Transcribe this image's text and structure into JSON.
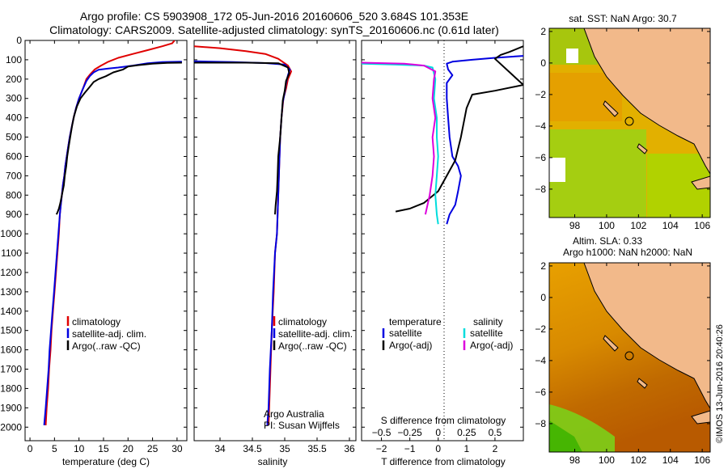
{
  "header": {
    "title_line1": "Argo profile: CS 5903908_172 05-Jun-2016 20160606_520 3.684S 101.353E",
    "title_line2": "Climatology: CARS2009. Satellite-adjusted climatology: synTS_20160606.nc (0.61d later)"
  },
  "depth_axis": {
    "ticks": [
      0,
      100,
      200,
      300,
      400,
      500,
      600,
      700,
      800,
      900,
      1000,
      1100,
      1200,
      1300,
      1400,
      1500,
      1600,
      1700,
      1800,
      1900,
      2000
    ],
    "range": [
      0,
      2070
    ]
  },
  "chart_data": [
    {
      "id": "temperature",
      "type": "line",
      "xlabel": "temperature (deg C)",
      "xlim": [
        -1,
        32
      ],
      "xticks": [
        0,
        5,
        10,
        15,
        20,
        25,
        30
      ],
      "ylim": [
        0,
        2070
      ],
      "y_reversed": true,
      "legend": [
        "climatology",
        "satellite-adj. clim.",
        "Argo(..raw -QC)"
      ],
      "series": [
        {
          "name": "climatology",
          "color": "#e00000",
          "points": [
            [
              29.5,
              0
            ],
            [
              29,
              15
            ],
            [
              27,
              30
            ],
            [
              24,
              50
            ],
            [
              21,
              70
            ],
            [
              18,
              90
            ],
            [
              16,
              110
            ],
            [
              14.5,
              130
            ],
            [
              13.2,
              150
            ],
            [
              12.3,
              175
            ],
            [
              11.5,
              200
            ],
            [
              10.8,
              250
            ],
            [
              10,
              300
            ],
            [
              9.4,
              350
            ],
            [
              8.9,
              400
            ],
            [
              8.5,
              450
            ],
            [
              8.1,
              500
            ],
            [
              7.8,
              550
            ],
            [
              7.5,
              600
            ],
            [
              7.2,
              650
            ],
            [
              7,
              700
            ],
            [
              6.7,
              750
            ],
            [
              6.5,
              800
            ],
            [
              6.3,
              850
            ],
            [
              6.1,
              900
            ],
            [
              5.9,
              1000
            ],
            [
              5.6,
              1100
            ],
            [
              5.3,
              1200
            ],
            [
              5,
              1300
            ],
            [
              4.7,
              1400
            ],
            [
              4.4,
              1500
            ],
            [
              4.2,
              1600
            ],
            [
              3.9,
              1700
            ],
            [
              3.7,
              1800
            ],
            [
              3.4,
              1900
            ],
            [
              3.2,
              1990
            ]
          ]
        },
        {
          "name": "satellite-adj. clim.",
          "color": "#0000e0",
          "points": [
            [
              31,
              110
            ],
            [
              27,
              112
            ],
            [
              24,
              118
            ],
            [
              21,
              130
            ],
            [
              18,
              140
            ],
            [
              16,
              145
            ],
            [
              14,
              152
            ],
            [
              13,
              165
            ],
            [
              12.2,
              185
            ],
            [
              11.5,
              210
            ],
            [
              10.8,
              250
            ],
            [
              10,
              300
            ],
            [
              9.4,
              350
            ],
            [
              8.9,
              400
            ],
            [
              8.5,
              450
            ],
            [
              8.1,
              500
            ],
            [
              7.8,
              550
            ],
            [
              7.5,
              600
            ],
            [
              7.2,
              650
            ],
            [
              7,
              700
            ],
            [
              6.7,
              750
            ],
            [
              6.5,
              800
            ],
            [
              6.3,
              850
            ],
            [
              6.1,
              900
            ],
            [
              5.8,
              1000
            ],
            [
              5.5,
              1100
            ],
            [
              5.2,
              1200
            ],
            [
              4.9,
              1300
            ],
            [
              4.6,
              1400
            ],
            [
              4.3,
              1500
            ],
            [
              4,
              1600
            ],
            [
              3.8,
              1700
            ],
            [
              3.5,
              1800
            ],
            [
              3.2,
              1900
            ],
            [
              2.9,
              1990
            ]
          ]
        },
        {
          "name": "Argo(..raw -QC)",
          "color": "#000000",
          "points": [
            [
              31,
              115
            ],
            [
              28,
              116
            ],
            [
              25,
              120
            ],
            [
              22,
              128
            ],
            [
              20,
              135
            ],
            [
              19,
              150
            ],
            [
              17,
              165
            ],
            [
              15.5,
              185
            ],
            [
              14,
              200
            ],
            [
              13,
              215
            ],
            [
              12.2,
              240
            ],
            [
              11.2,
              270
            ],
            [
              10.3,
              300
            ],
            [
              9.6,
              340
            ],
            [
              9,
              390
            ],
            [
              8.6,
              440
            ],
            [
              8.2,
              500
            ],
            [
              7.9,
              550
            ],
            [
              7.6,
              600
            ],
            [
              7.4,
              650
            ],
            [
              7.1,
              700
            ],
            [
              6.9,
              750
            ],
            [
              6.5,
              800
            ],
            [
              6.2,
              840
            ],
            [
              5.9,
              870
            ],
            [
              5.6,
              890
            ],
            [
              5.4,
              900
            ]
          ]
        }
      ]
    },
    {
      "id": "salinity",
      "type": "line",
      "xlabel": "salinity",
      "xlim": [
        33.6,
        36.1
      ],
      "xticks": [
        34,
        34.5,
        35,
        35.5,
        36
      ],
      "xtick_labels": [
        "34",
        "34.5",
        "35",
        "35.5",
        "36"
      ],
      "ylim": [
        0,
        2070
      ],
      "y_reversed": true,
      "legend": [
        "climatology",
        "satellite-adj. clim.",
        "Argo(..raw -QC)"
      ],
      "annotations": [
        "Argo Australia",
        "PI: Susan Wijffels"
      ],
      "series": [
        {
          "name": "climatology",
          "color": "#e00000",
          "points": [
            [
              33.6,
              30
            ],
            [
              34,
              40
            ],
            [
              34.4,
              55
            ],
            [
              34.7,
              70
            ],
            [
              34.9,
              95
            ],
            [
              35.05,
              130
            ],
            [
              35.1,
              160
            ],
            [
              35.05,
              200
            ],
            [
              35.02,
              250
            ],
            [
              34.98,
              300
            ],
            [
              34.95,
              400
            ],
            [
              34.93,
              500
            ],
            [
              34.92,
              600
            ],
            [
              34.91,
              700
            ],
            [
              34.9,
              800
            ],
            [
              34.89,
              900
            ],
            [
              34.88,
              1000
            ],
            [
              34.85,
              1100
            ],
            [
              34.83,
              1300
            ],
            [
              34.8,
              1500
            ],
            [
              34.78,
              1700
            ],
            [
              34.76,
              1900
            ],
            [
              34.75,
              1990
            ]
          ]
        },
        {
          "name": "satellite-adj. clim.",
          "color": "#0000e0",
          "points": [
            [
              33.6,
              108
            ],
            [
              34.2,
              112
            ],
            [
              34.7,
              117
            ],
            [
              35,
              125
            ],
            [
              35.08,
              150
            ],
            [
              35.05,
              180
            ],
            [
              35.02,
              220
            ],
            [
              35,
              270
            ],
            [
              34.97,
              320
            ],
            [
              34.95,
              400
            ],
            [
              34.93,
              500
            ],
            [
              34.92,
              600
            ],
            [
              34.91,
              700
            ],
            [
              34.9,
              800
            ],
            [
              34.89,
              900
            ],
            [
              34.88,
              1000
            ],
            [
              34.85,
              1100
            ],
            [
              34.82,
              1300
            ],
            [
              34.8,
              1500
            ],
            [
              34.77,
              1700
            ],
            [
              34.75,
              1900
            ],
            [
              34.73,
              1990
            ]
          ]
        },
        {
          "name": "Argo(..raw -QC)",
          "color": "#000000",
          "points": [
            [
              33.6,
              115
            ],
            [
              34.4,
              115
            ],
            [
              34.9,
              118
            ],
            [
              35.05,
              140
            ],
            [
              35.07,
              170
            ],
            [
              35.02,
              210
            ],
            [
              35,
              260
            ],
            [
              34.97,
              310
            ],
            [
              34.95,
              400
            ],
            [
              34.93,
              500
            ],
            [
              34.9,
              600
            ],
            [
              34.89,
              700
            ],
            [
              34.88,
              780
            ],
            [
              34.86,
              850
            ],
            [
              34.85,
              900
            ]
          ]
        }
      ]
    },
    {
      "id": "difference",
      "type": "line",
      "xlabel": "T difference from climatology",
      "xlim": [
        -2.7,
        3
      ],
      "xticks": [
        -2,
        -1,
        0,
        1,
        2
      ],
      "top_label": "S difference from climatology",
      "top_ticks": [
        -0.5,
        -0.25,
        0,
        0.25,
        0.5
      ],
      "top_tick_labels": [
        "−0.5",
        "−0.25",
        "0",
        "0.25",
        "0.5"
      ],
      "s_scale_per_T": 4,
      "ylim": [
        0,
        2070
      ],
      "y_reversed": true,
      "legend_temperature": {
        "title": "temperature",
        "entries": [
          "satellite",
          "Argo(-adj)"
        ]
      },
      "legend_salinity": {
        "title": "salinity",
        "entries": [
          "satellite",
          "Argo(-adj)"
        ]
      },
      "series": [
        {
          "name": "satellite",
          "group": "temperature",
          "color": "#0000e0",
          "points": [
            [
              3,
              80
            ],
            [
              2,
              90
            ],
            [
              1.2,
              100
            ],
            [
              0.5,
              110
            ],
            [
              0.3,
              120
            ],
            [
              0.35,
              150
            ],
            [
              0.5,
              180
            ],
            [
              0.3,
              220
            ],
            [
              0.3,
              300
            ],
            [
              0.35,
              400
            ],
            [
              0.4,
              500
            ],
            [
              0.5,
              600
            ],
            [
              0.7,
              650
            ],
            [
              0.8,
              700
            ],
            [
              0.7,
              780
            ],
            [
              0.6,
              850
            ],
            [
              0.4,
              900
            ],
            [
              0.3,
              950
            ]
          ]
        },
        {
          "name": "Argo(-adj)",
          "group": "temperature",
          "color": "#000000",
          "points": [
            [
              3,
              30
            ],
            [
              2.5,
              60
            ],
            [
              2.2,
              75
            ],
            [
              2,
              95
            ],
            [
              3,
              230
            ],
            [
              2,
              260
            ],
            [
              1.2,
              280
            ],
            [
              1,
              350
            ],
            [
              0.8,
              500
            ],
            [
              0.6,
              620
            ],
            [
              0.3,
              700
            ],
            [
              0,
              780
            ],
            [
              -0.5,
              840
            ],
            [
              -1,
              870
            ],
            [
              -1.5,
              885
            ]
          ]
        },
        {
          "name": "satellite",
          "group": "salinity",
          "color": "#00dddd",
          "points": [
            [
              -2.7,
              120
            ],
            [
              -1.5,
              125
            ],
            [
              -0.5,
              130
            ],
            [
              -0.2,
              140
            ],
            [
              -0.1,
              200
            ],
            [
              -0.15,
              300
            ],
            [
              -0.05,
              400
            ],
            [
              -0.05,
              500
            ],
            [
              0,
              600
            ],
            [
              -0.05,
              700
            ],
            [
              -0.1,
              800
            ],
            [
              -0.05,
              900
            ],
            [
              0,
              950
            ]
          ]
        },
        {
          "name": "Argo(-adj)",
          "group": "salinity",
          "color": "#dd00dd",
          "points": [
            [
              -2.7,
              115
            ],
            [
              -1.2,
              120
            ],
            [
              -0.5,
              130
            ],
            [
              -0.1,
              160
            ],
            [
              -0.15,
              200
            ],
            [
              -0.2,
              300
            ],
            [
              -0.1,
              400
            ],
            [
              -0.2,
              500
            ],
            [
              -0.15,
              600
            ],
            [
              -0.2,
              700
            ],
            [
              -0.3,
              800
            ],
            [
              -0.45,
              900
            ]
          ]
        }
      ]
    }
  ],
  "maps": {
    "top_title": "sat. SST: NaN Argo: 30.7",
    "bottom_title_line1": "Altim. SLA: 0.33",
    "bottom_title_line2": "Argo h1000: NaN h2000: NaN",
    "xticks": [
      98,
      100,
      102,
      104,
      106
    ],
    "yticks": [
      2,
      0,
      -2,
      -4,
      -6,
      -8
    ],
    "ytick_labels": [
      "2",
      "0",
      "−2",
      "−4",
      "−6",
      "−8"
    ],
    "lon_range": [
      96.4,
      106.5
    ],
    "lat_range": [
      -9.8,
      2.2
    ],
    "profile_location": {
      "lat": -3.684,
      "lon": 101.353
    }
  },
  "credit": "©IMOS 13-Jun-2016 20:40:26"
}
